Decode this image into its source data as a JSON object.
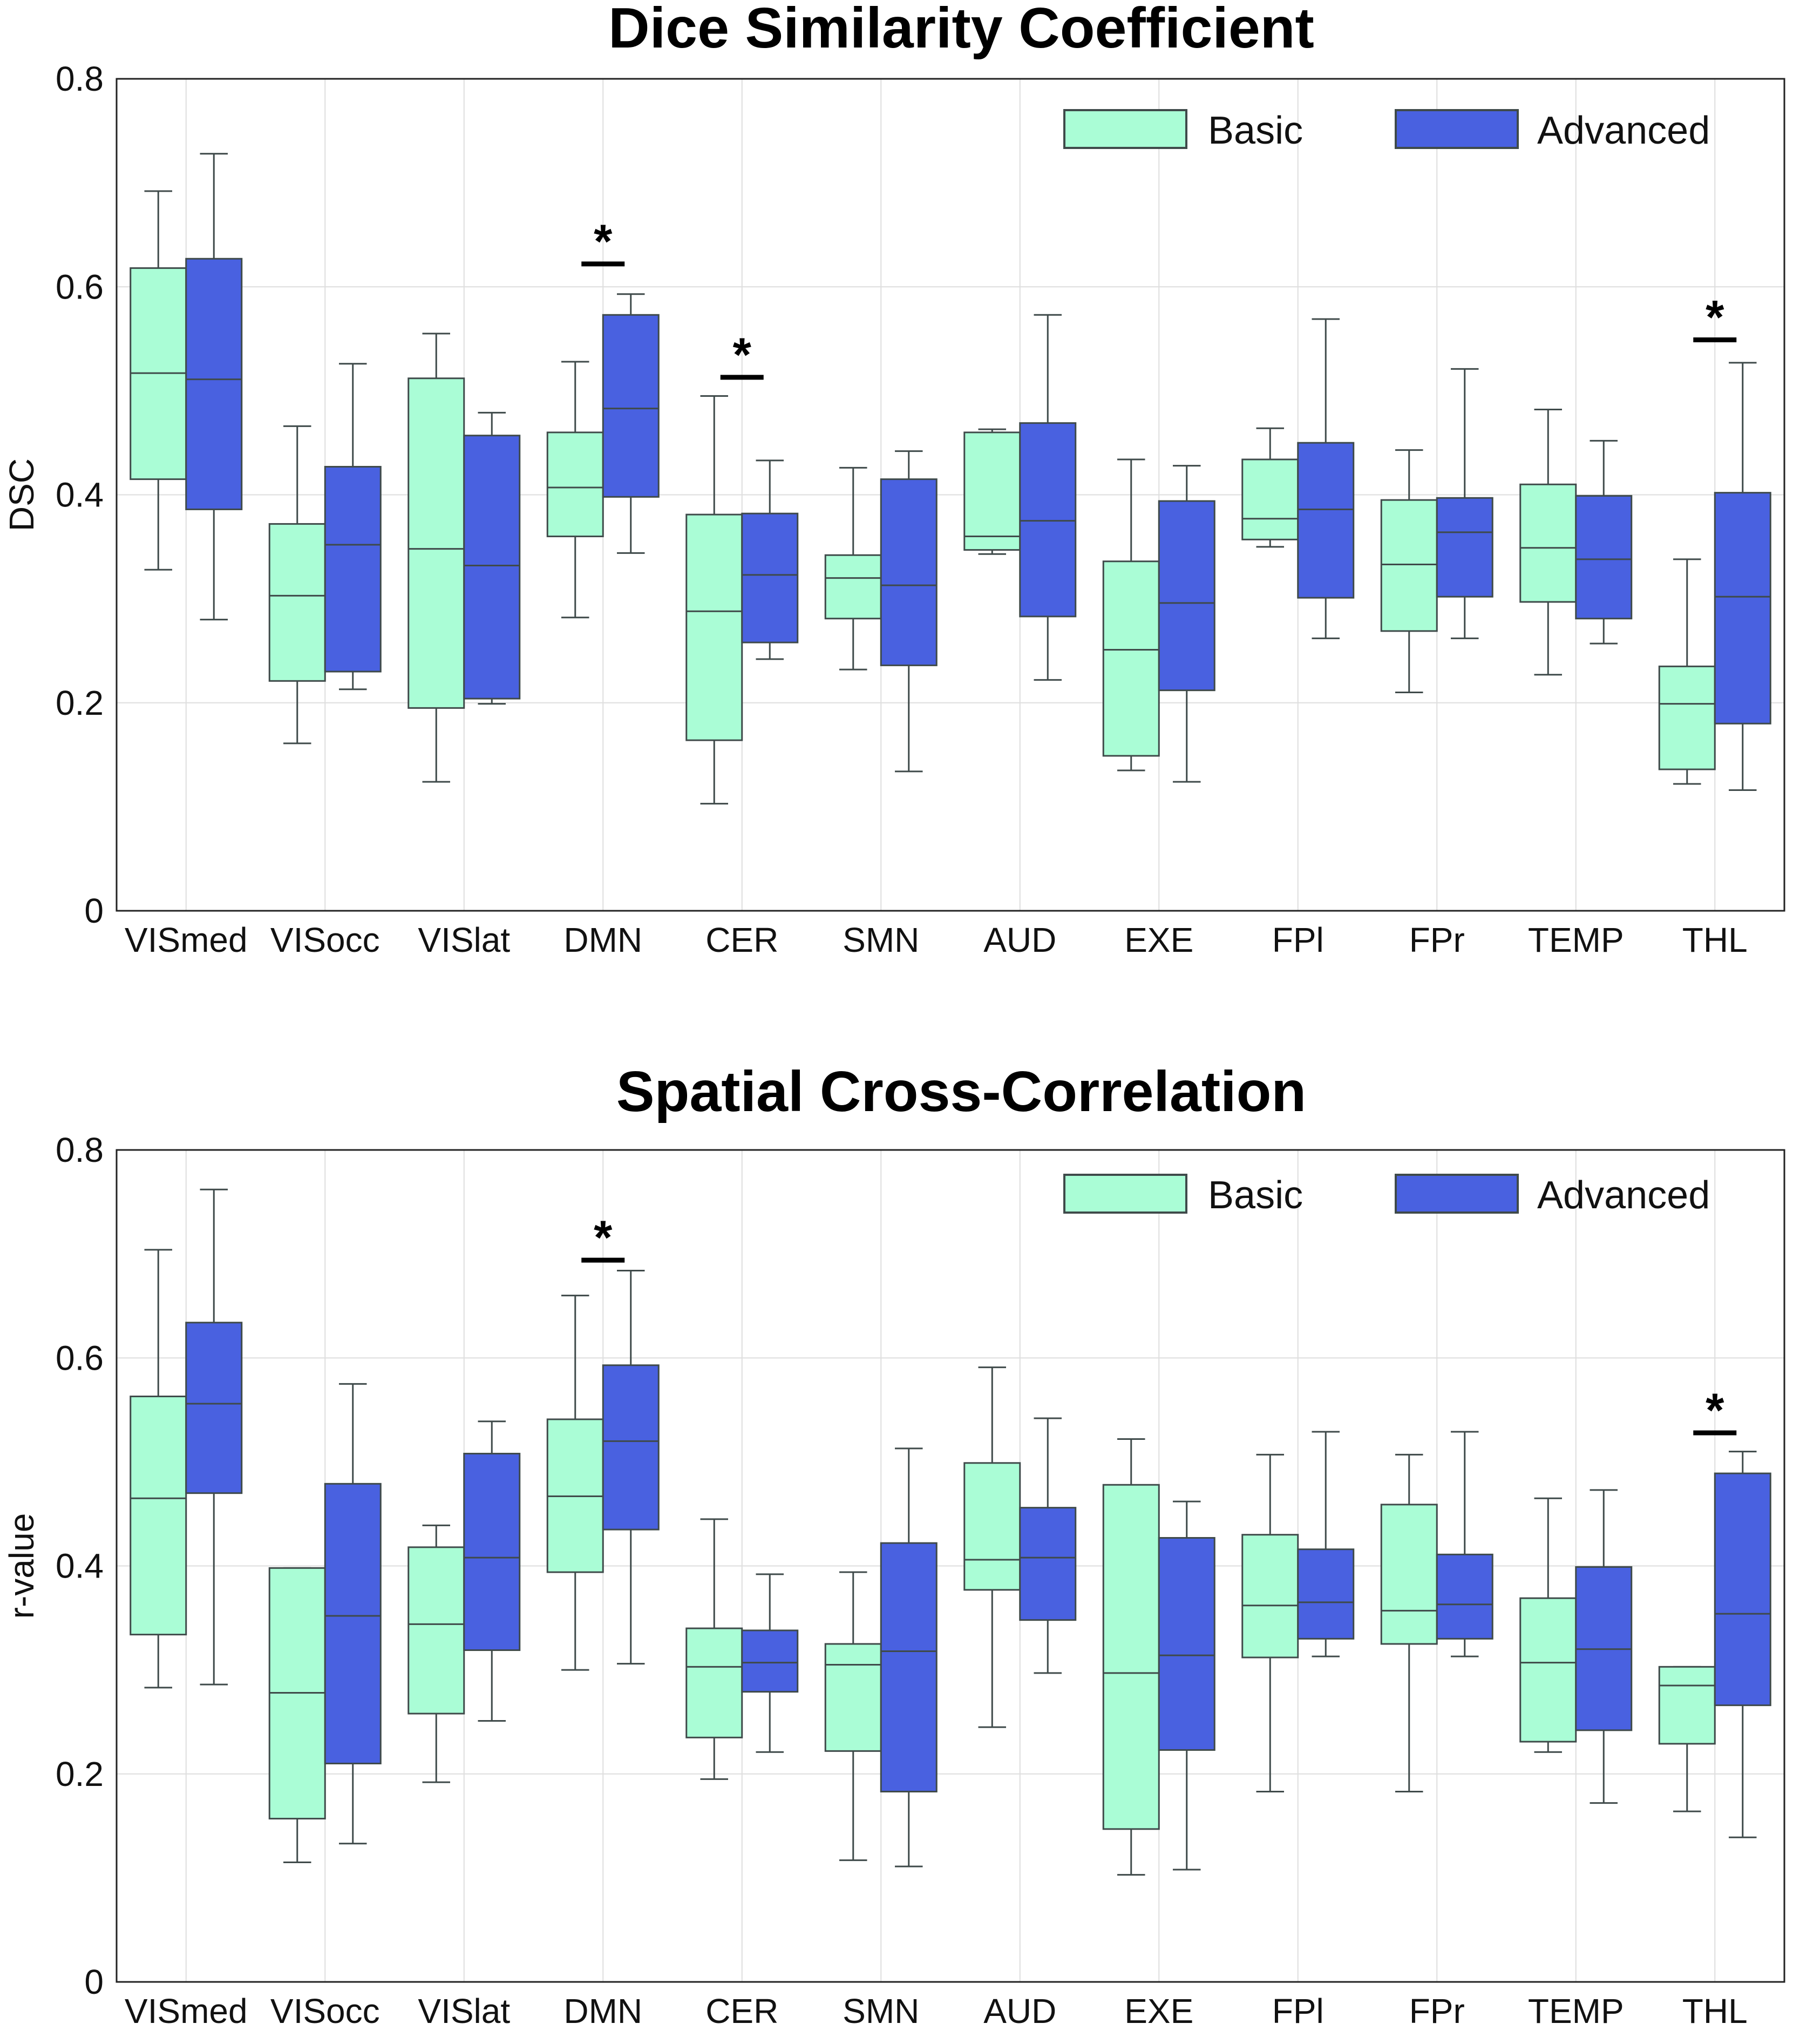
{
  "colors": {
    "basic": "#aafdd6",
    "advanced": "#4961e0",
    "box_edge": "#3f4a4a",
    "grid": "#dedede"
  },
  "chart_data": [
    {
      "type": "box",
      "title": "Dice Similarity Coefficient",
      "xlabel": "",
      "ylabel": "DSC",
      "ylim": [
        0,
        0.8
      ],
      "yticks": [
        0,
        0.2,
        0.4,
        0.6,
        0.8
      ],
      "ytick_labels": [
        "0",
        "0.2",
        "0.4",
        "0.6",
        "0.8"
      ],
      "grid": true,
      "legend": {
        "position": "top-right",
        "entries": [
          "Basic",
          "Advanced"
        ]
      },
      "categories": [
        "VISmed",
        "VISocc",
        "VISlat",
        "DMN",
        "CER",
        "SMN",
        "AUD",
        "EXE",
        "FPl",
        "FPr",
        "TEMP",
        "THL"
      ],
      "series": [
        {
          "name": "Basic",
          "boxes": [
            {
              "whislo": 0.328,
              "q1": 0.415,
              "med": 0.517,
              "q3": 0.618,
              "whishi": 0.692
            },
            {
              "whislo": 0.161,
              "q1": 0.221,
              "med": 0.303,
              "q3": 0.372,
              "whishi": 0.466
            },
            {
              "whislo": 0.124,
              "q1": 0.195,
              "med": 0.348,
              "q3": 0.512,
              "whishi": 0.555
            },
            {
              "whislo": 0.282,
              "q1": 0.36,
              "med": 0.407,
              "q3": 0.46,
              "whishi": 0.528
            },
            {
              "whislo": 0.103,
              "q1": 0.164,
              "med": 0.288,
              "q3": 0.381,
              "whishi": 0.495
            },
            {
              "whislo": 0.232,
              "q1": 0.281,
              "med": 0.32,
              "q3": 0.342,
              "whishi": 0.426
            },
            {
              "whislo": 0.343,
              "q1": 0.347,
              "med": 0.36,
              "q3": 0.46,
              "whishi": 0.463
            },
            {
              "whislo": 0.135,
              "q1": 0.149,
              "med": 0.251,
              "q3": 0.336,
              "whishi": 0.434
            },
            {
              "whislo": 0.35,
              "q1": 0.357,
              "med": 0.377,
              "q3": 0.434,
              "whishi": 0.464
            },
            {
              "whislo": 0.21,
              "q1": 0.269,
              "med": 0.333,
              "q3": 0.395,
              "whishi": 0.443
            },
            {
              "whislo": 0.227,
              "q1": 0.297,
              "med": 0.349,
              "q3": 0.41,
              "whishi": 0.482
            },
            {
              "whislo": 0.122,
              "q1": 0.136,
              "med": 0.199,
              "q3": 0.235,
              "whishi": 0.338
            }
          ]
        },
        {
          "name": "Advanced",
          "boxes": [
            {
              "whislo": 0.28,
              "q1": 0.386,
              "med": 0.511,
              "q3": 0.627,
              "whishi": 0.728
            },
            {
              "whislo": 0.213,
              "q1": 0.23,
              "med": 0.352,
              "q3": 0.427,
              "whishi": 0.526
            },
            {
              "whislo": 0.199,
              "q1": 0.204,
              "med": 0.332,
              "q3": 0.457,
              "whishi": 0.479
            },
            {
              "whislo": 0.344,
              "q1": 0.398,
              "med": 0.483,
              "q3": 0.573,
              "whishi": 0.593
            },
            {
              "whislo": 0.242,
              "q1": 0.258,
              "med": 0.323,
              "q3": 0.382,
              "whishi": 0.433
            },
            {
              "whislo": 0.134,
              "q1": 0.236,
              "med": 0.313,
              "q3": 0.415,
              "whishi": 0.442
            },
            {
              "whislo": 0.222,
              "q1": 0.283,
              "med": 0.375,
              "q3": 0.469,
              "whishi": 0.573
            },
            {
              "whislo": 0.124,
              "q1": 0.212,
              "med": 0.296,
              "q3": 0.394,
              "whishi": 0.428
            },
            {
              "whislo": 0.262,
              "q1": 0.301,
              "med": 0.386,
              "q3": 0.45,
              "whishi": 0.569
            },
            {
              "whislo": 0.262,
              "q1": 0.302,
              "med": 0.364,
              "q3": 0.397,
              "whishi": 0.521
            },
            {
              "whislo": 0.257,
              "q1": 0.281,
              "med": 0.338,
              "q3": 0.399,
              "whishi": 0.452
            },
            {
              "whislo": 0.116,
              "q1": 0.18,
              "med": 0.302,
              "q3": 0.402,
              "whishi": 0.527
            }
          ]
        }
      ],
      "significance": [
        {
          "category": "DMN",
          "label": "*",
          "level": 0.622
        },
        {
          "category": "CER",
          "label": "*",
          "level": 0.513
        },
        {
          "category": "THL",
          "label": "*",
          "level": 0.549
        }
      ]
    },
    {
      "type": "box",
      "title": "Spatial Cross-Correlation",
      "xlabel": "",
      "ylabel": "r-value",
      "ylim": [
        0,
        0.8
      ],
      "yticks": [
        0,
        0.2,
        0.4,
        0.6,
        0.8
      ],
      "ytick_labels": [
        "0",
        "0.2",
        "0.4",
        "0.6",
        "0.8"
      ],
      "grid": true,
      "legend": {
        "position": "top-right",
        "entries": [
          "Basic",
          "Advanced"
        ]
      },
      "categories": [
        "VISmed",
        "VISocc",
        "VISlat",
        "DMN",
        "CER",
        "SMN",
        "AUD",
        "EXE",
        "FPl",
        "FPr",
        "TEMP",
        "THL"
      ],
      "series": [
        {
          "name": "Basic",
          "boxes": [
            {
              "whislo": 0.283,
              "q1": 0.334,
              "med": 0.465,
              "q3": 0.563,
              "whishi": 0.704
            },
            {
              "whislo": 0.115,
              "q1": 0.157,
              "med": 0.278,
              "q3": 0.398,
              "whishi": 0.398
            },
            {
              "whislo": 0.192,
              "q1": 0.258,
              "med": 0.344,
              "q3": 0.418,
              "whishi": 0.439
            },
            {
              "whislo": 0.3,
              "q1": 0.394,
              "med": 0.467,
              "q3": 0.541,
              "whishi": 0.66
            },
            {
              "whislo": 0.195,
              "q1": 0.235,
              "med": 0.303,
              "q3": 0.34,
              "whishi": 0.445
            },
            {
              "whislo": 0.117,
              "q1": 0.222,
              "med": 0.305,
              "q3": 0.325,
              "whishi": 0.394
            },
            {
              "whislo": 0.245,
              "q1": 0.377,
              "med": 0.406,
              "q3": 0.499,
              "whishi": 0.591
            },
            {
              "whislo": 0.103,
              "q1": 0.147,
              "med": 0.297,
              "q3": 0.478,
              "whishi": 0.522
            },
            {
              "whislo": 0.183,
              "q1": 0.312,
              "med": 0.362,
              "q3": 0.43,
              "whishi": 0.507
            },
            {
              "whislo": 0.183,
              "q1": 0.325,
              "med": 0.357,
              "q3": 0.459,
              "whishi": 0.507
            },
            {
              "whislo": 0.221,
              "q1": 0.231,
              "med": 0.307,
              "q3": 0.369,
              "whishi": 0.465
            },
            {
              "whislo": 0.164,
              "q1": 0.229,
              "med": 0.285,
              "q3": 0.303,
              "whishi": 0.303
            }
          ]
        },
        {
          "name": "Advanced",
          "boxes": [
            {
              "whislo": 0.286,
              "q1": 0.47,
              "med": 0.556,
              "q3": 0.634,
              "whishi": 0.762
            },
            {
              "whislo": 0.133,
              "q1": 0.21,
              "med": 0.352,
              "q3": 0.479,
              "whishi": 0.575
            },
            {
              "whislo": 0.251,
              "q1": 0.319,
              "med": 0.408,
              "q3": 0.508,
              "whishi": 0.539
            },
            {
              "whislo": 0.306,
              "q1": 0.435,
              "med": 0.52,
              "q3": 0.593,
              "whishi": 0.684
            },
            {
              "whislo": 0.221,
              "q1": 0.279,
              "med": 0.307,
              "q3": 0.338,
              "whishi": 0.392
            },
            {
              "whislo": 0.111,
              "q1": 0.183,
              "med": 0.318,
              "q3": 0.422,
              "whishi": 0.513
            },
            {
              "whislo": 0.297,
              "q1": 0.348,
              "med": 0.408,
              "q3": 0.456,
              "whishi": 0.542
            },
            {
              "whislo": 0.108,
              "q1": 0.223,
              "med": 0.314,
              "q3": 0.427,
              "whishi": 0.462
            },
            {
              "whislo": 0.313,
              "q1": 0.33,
              "med": 0.365,
              "q3": 0.416,
              "whishi": 0.529
            },
            {
              "whislo": 0.313,
              "q1": 0.33,
              "med": 0.363,
              "q3": 0.411,
              "whishi": 0.529
            },
            {
              "whislo": 0.172,
              "q1": 0.242,
              "med": 0.32,
              "q3": 0.399,
              "whishi": 0.473
            },
            {
              "whislo": 0.139,
              "q1": 0.266,
              "med": 0.354,
              "q3": 0.489,
              "whishi": 0.51
            }
          ]
        }
      ],
      "significance": [
        {
          "category": "DMN",
          "label": "*",
          "level": 0.694
        },
        {
          "category": "THL",
          "label": "*",
          "level": 0.528
        }
      ]
    }
  ]
}
